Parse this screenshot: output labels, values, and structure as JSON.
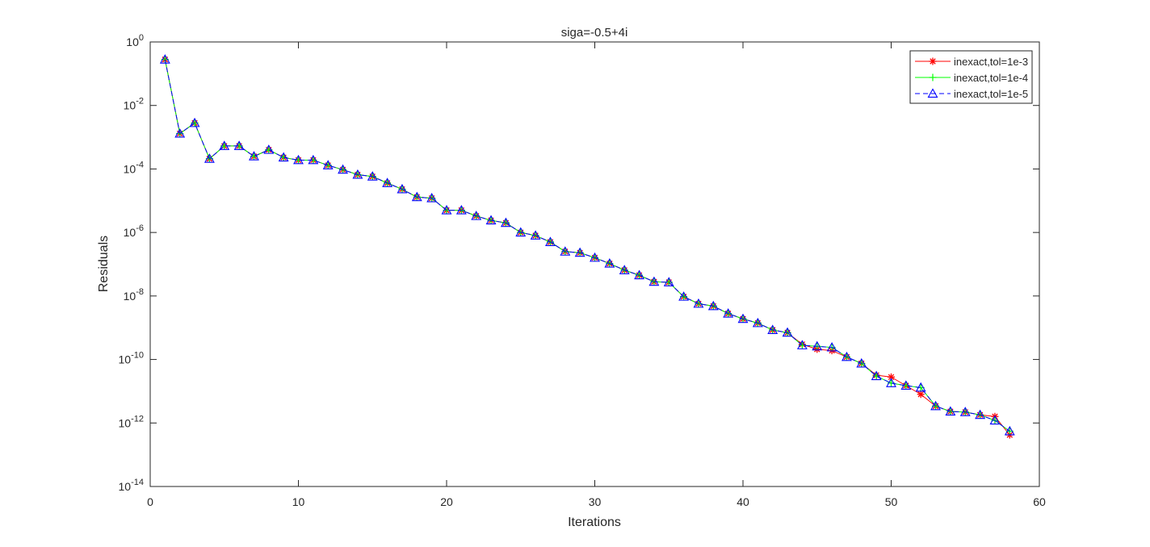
{
  "chart_data": {
    "type": "line",
    "title": "siga=-0.5+4i",
    "xlabel": "Iterations",
    "ylabel": "Residuals",
    "xlim": [
      0,
      60
    ],
    "ylim_exponent": [
      -14,
      0
    ],
    "yscale": "log",
    "grid": false,
    "legend_position": "top-right",
    "x_ticks": [
      "0",
      "10",
      "20",
      "30",
      "40",
      "50",
      "60"
    ],
    "y_ticks": [
      {
        "base": "10",
        "exp": "0"
      },
      {
        "base": "10",
        "exp": "-2"
      },
      {
        "base": "10",
        "exp": "-4"
      },
      {
        "base": "10",
        "exp": "-6"
      },
      {
        "base": "10",
        "exp": "-8"
      },
      {
        "base": "10",
        "exp": "-10"
      },
      {
        "base": "10",
        "exp": "-12"
      },
      {
        "base": "10",
        "exp": "-14"
      }
    ],
    "x": [
      1,
      2,
      3,
      4,
      5,
      6,
      7,
      8,
      9,
      10,
      11,
      12,
      13,
      14,
      15,
      16,
      17,
      18,
      19,
      20,
      21,
      22,
      23,
      24,
      25,
      26,
      27,
      28,
      29,
      30,
      31,
      32,
      33,
      34,
      35,
      36,
      37,
      38,
      39,
      40,
      41,
      42,
      43,
      44,
      45,
      46,
      47,
      48,
      49,
      50,
      51,
      52,
      53,
      54,
      55,
      56,
      57,
      58
    ],
    "series": [
      {
        "name": "inexact,tol=1e-3",
        "color": "#ff0000",
        "marker": "asterisk",
        "line": "solid",
        "values": [
          0.28,
          0.0013,
          0.0028,
          0.00021,
          0.00053,
          0.00053,
          0.00025,
          0.0004,
          0.00023,
          0.00019,
          0.00019,
          0.00013,
          9.5e-05,
          6.6e-05,
          5.8e-05,
          3.6e-05,
          2.3e-05,
          1.3e-05,
          1.2e-05,
          5e-06,
          5e-06,
          3.3e-06,
          2.4e-06,
          2e-06,
          1e-06,
          8e-07,
          5e-07,
          2.5e-07,
          2.3e-07,
          1.6e-07,
          1.05e-07,
          6.5e-08,
          4.5e-08,
          2.8e-08,
          2.7e-08,
          9.5e-09,
          5.7e-09,
          4.8e-09,
          2.8e-09,
          1.9e-09,
          1.4e-09,
          8.5e-10,
          7e-10,
          3e-10,
          2.1e-10,
          1.9e-10,
          1.2e-10,
          7.5e-11,
          3.2e-11,
          2.8e-11,
          1.5e-11,
          8e-12,
          3.4e-12,
          2.3e-12,
          2.2e-12,
          1.8e-12,
          1.6e-12,
          4.2e-13
        ]
      },
      {
        "name": "inexact,tol=1e-4",
        "color": "#00ff00",
        "marker": "plus",
        "line": "solid",
        "values": [
          0.28,
          0.0013,
          0.0028,
          0.00021,
          0.00053,
          0.00053,
          0.00025,
          0.0004,
          0.00023,
          0.00019,
          0.00019,
          0.00013,
          9.5e-05,
          6.6e-05,
          5.8e-05,
          3.6e-05,
          2.3e-05,
          1.3e-05,
          1.2e-05,
          5e-06,
          5e-06,
          3.3e-06,
          2.4e-06,
          2e-06,
          1e-06,
          8e-07,
          5e-07,
          2.5e-07,
          2.3e-07,
          1.6e-07,
          1.05e-07,
          6.5e-08,
          4.5e-08,
          2.8e-08,
          2.7e-08,
          9.5e-09,
          5.7e-09,
          4.8e-09,
          2.8e-09,
          1.9e-09,
          1.4e-09,
          8.5e-10,
          7e-10,
          2.8e-10,
          2.6e-10,
          2.4e-10,
          1.2e-10,
          7.5e-11,
          3e-11,
          1.8e-11,
          1.5e-11,
          1.3e-11,
          3.4e-12,
          2.3e-12,
          2.2e-12,
          1.8e-12,
          1.2e-12,
          5.5e-13
        ]
      },
      {
        "name": "inexact,tol=1e-5",
        "color": "#0000ff",
        "marker": "triangle",
        "line": "dashed",
        "values": [
          0.28,
          0.0013,
          0.0028,
          0.00021,
          0.00053,
          0.00053,
          0.00025,
          0.0004,
          0.00023,
          0.00019,
          0.00019,
          0.00013,
          9.5e-05,
          6.6e-05,
          5.8e-05,
          3.6e-05,
          2.3e-05,
          1.3e-05,
          1.2e-05,
          5e-06,
          5e-06,
          3.3e-06,
          2.4e-06,
          2e-06,
          1e-06,
          8e-07,
          5e-07,
          2.5e-07,
          2.3e-07,
          1.6e-07,
          1.05e-07,
          6.5e-08,
          4.5e-08,
          2.8e-08,
          2.7e-08,
          9.5e-09,
          5.7e-09,
          4.8e-09,
          2.8e-09,
          1.9e-09,
          1.4e-09,
          8.5e-10,
          7e-10,
          2.8e-10,
          2.6e-10,
          2.4e-10,
          1.2e-10,
          7.5e-11,
          3e-11,
          1.8e-11,
          1.5e-11,
          1.3e-11,
          3.4e-12,
          2.3e-12,
          2.2e-12,
          1.8e-12,
          1.2e-12,
          5.5e-13
        ]
      }
    ]
  }
}
